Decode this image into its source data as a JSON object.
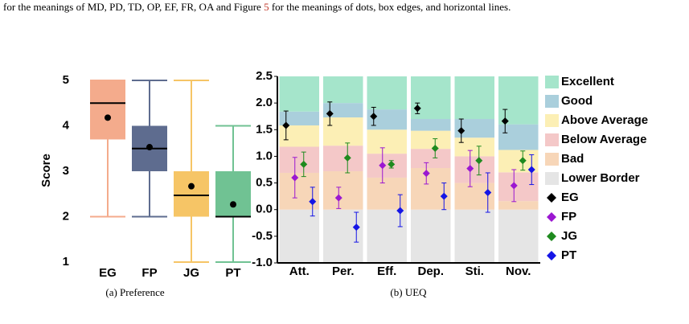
{
  "header": {
    "text_before": "for the meanings of MD, PD, TD, OP, EF, FR, OA and Figure ",
    "figure_ref": "5",
    "text_after": " for the meanings of dots, box edges, and horizontal lines."
  },
  "chart_data": [
    {
      "type": "box",
      "ylabel": "Score",
      "caption": "(a) Preference",
      "categories": [
        "EG",
        "FP",
        "JG",
        "PT"
      ],
      "ylim": [
        1,
        5
      ],
      "yticks": [
        1,
        2,
        3,
        4,
        5
      ],
      "boxes": [
        {
          "min": 2,
          "q1": 3.7,
          "median": 4.5,
          "q3": 5,
          "max": 5,
          "mean": 4.18,
          "color": "#f4ab8c"
        },
        {
          "min": 2,
          "q1": 3,
          "median": 3.5,
          "q3": 4,
          "max": 5,
          "mean": 3.53,
          "color": "#5e6c8f"
        },
        {
          "min": 1,
          "q1": 2,
          "median": 2.47,
          "q3": 3,
          "max": 5,
          "mean": 2.67,
          "color": "#f6c566"
        },
        {
          "min": 1,
          "q1": 2,
          "median": 2,
          "q3": 3,
          "max": 4,
          "mean": 2.27,
          "color": "#70c293"
        }
      ]
    },
    {
      "type": "ueq",
      "caption": "(b) UEQ",
      "categories": [
        "Att.",
        "Per.",
        "Eff.",
        "Dep.",
        "Sti.",
        "Nov."
      ],
      "ylim": [
        -1,
        2.5
      ],
      "yticks": [
        {
          "value": -1,
          "label": "-1.0"
        },
        -0.5,
        {
          "value": 0,
          "label": "0.0"
        },
        0.5,
        {
          "value": 1,
          "label": "1.0"
        },
        1.5,
        {
          "value": 2,
          "label": "2.0"
        },
        2.5
      ],
      "bands": [
        {
          "name": "Excellent",
          "color": "#a5e5cb",
          "values": [
            0.66,
            0.5,
            0.62,
            0.8,
            0.8,
            0.9
          ]
        },
        {
          "name": "Good",
          "color": "#aacfdc",
          "values": [
            0.26,
            0.27,
            0.38,
            0.22,
            0.35,
            0.48
          ]
        },
        {
          "name": "Above Average",
          "color": "#fcefb5",
          "values": [
            0.4,
            0.53,
            0.45,
            0.34,
            0.35,
            0.42
          ]
        },
        {
          "name": "Below Average",
          "color": "#f4c8c8",
          "values": [
            0.49,
            0.48,
            0.45,
            0.36,
            0.5,
            0.54
          ]
        },
        {
          "name": "Bad",
          "color": "#f7d6b8",
          "values": [
            0.69,
            0.72,
            0.6,
            0.78,
            0.5,
            0.16
          ]
        },
        {
          "name": "Lower Border",
          "color": "#e5e5e5",
          "values": [
            -1,
            -1,
            -1,
            -1,
            -1,
            -1
          ]
        }
      ],
      "series": [
        {
          "name": "EG",
          "color": "#000000",
          "values": [
            1.58,
            1.8,
            1.75,
            1.9,
            1.48,
            1.66
          ],
          "errors": [
            0.27,
            0.22,
            0.17,
            0.1,
            0.22,
            0.22
          ]
        },
        {
          "name": "FP",
          "color": "#9b17d1",
          "values": [
            0.6,
            0.22,
            0.83,
            0.68,
            0.77,
            0.45
          ],
          "errors": [
            0.38,
            0.2,
            0.33,
            0.2,
            0.34,
            0.3
          ]
        },
        {
          "name": "JG",
          "color": "#1f8a1f",
          "values": [
            0.85,
            0.97,
            0.85,
            1.15,
            0.92,
            0.92
          ],
          "errors": [
            0.23,
            0.28,
            0.07,
            0.18,
            0.27,
            0.18
          ]
        },
        {
          "name": "PT",
          "color": "#1515e6",
          "values": [
            0.15,
            -0.33,
            -0.02,
            0.25,
            0.32,
            0.75
          ],
          "errors": [
            0.27,
            0.28,
            0.3,
            0.25,
            0.37,
            0.28
          ]
        }
      ]
    }
  ]
}
